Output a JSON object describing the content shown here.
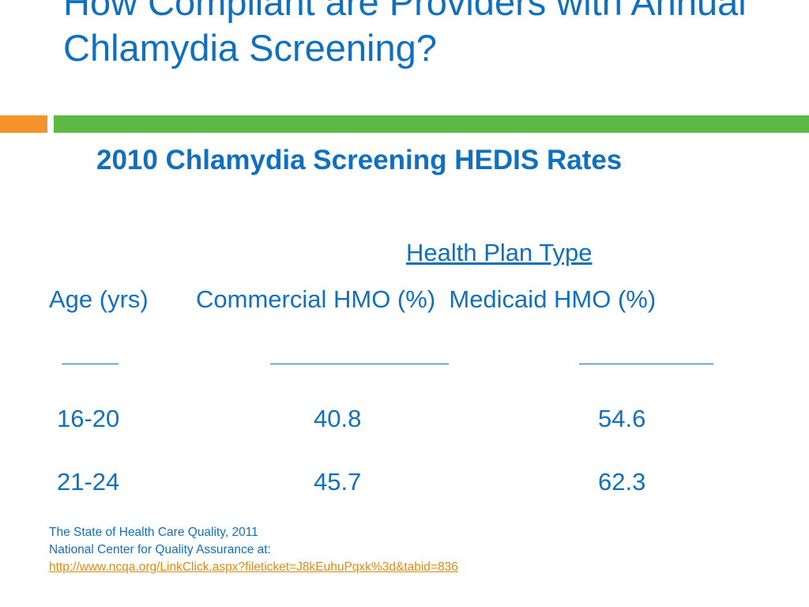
{
  "slide": {
    "title": "How Compliant are Providers with Annual Chlamydia Screening?",
    "subtitle": "2010 Chlamydia Screening HEDIS Rates",
    "colors": {
      "title": "#1070c0",
      "orange_bar": "#f5932a",
      "green_bar": "#5cb944",
      "link": "#e08a10"
    }
  },
  "table": {
    "group_header": "Health Plan Type",
    "column_headers_text": "Age (yrs)       Commercial HMO (%)  Medicaid HMO (%)",
    "rows": [
      {
        "age": "16-20",
        "commercial": "40.8",
        "medicaid": "54.6"
      },
      {
        "age": "21-24",
        "commercial": "45.7",
        "medicaid": "62.3"
      }
    ]
  },
  "source": {
    "line1": "The State of Health Care Quality, 2011",
    "line2": "National Center for Quality Assurance at:",
    "link": "http://www.ncqa.org/LinkClick.aspx?fileticket=J8kEuhuPqxk%3d&tabid=836"
  }
}
